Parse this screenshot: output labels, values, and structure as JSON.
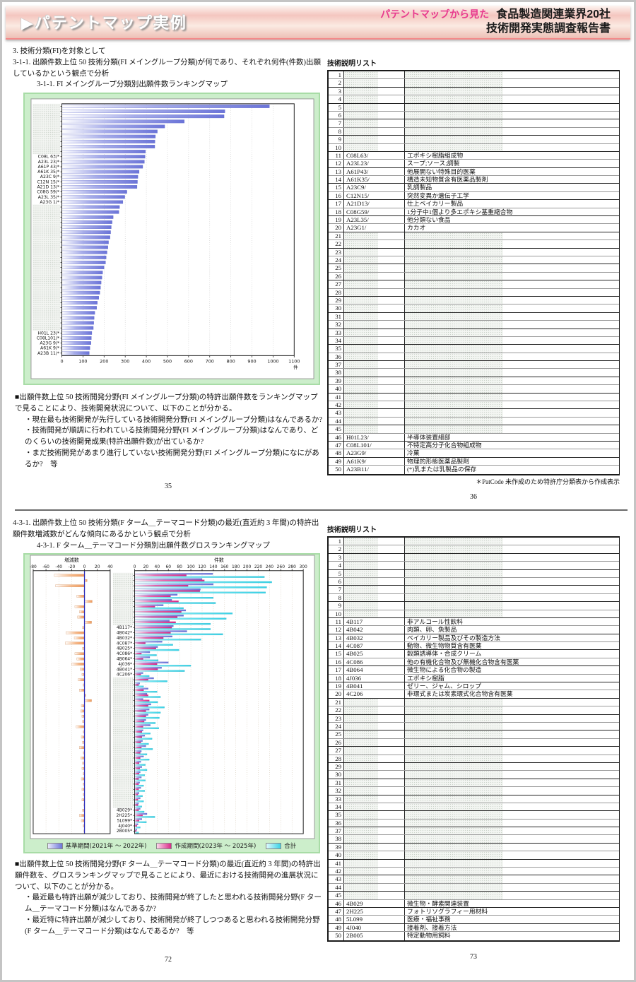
{
  "header": {
    "title": "▶パテントマップ実例",
    "subtitle_pink": "パテントマップから見た",
    "subtitle_black1": "食品製造関連業界20社",
    "subtitle_black2": "技術開発実態調査報告書"
  },
  "section1": {
    "intro_line1": "3. 技術分類(FI)を対象として",
    "intro_line2": "3-1-1. 出願件数上位 50 技術分類(FI メイングループ分類)が何であり、それぞれ何件(件数)出願しているかという観点で分析",
    "map_title": "3-1-1. FI メイングループ分類別出願件数ランキングマップ",
    "bullet_head": "■出願件数上位 50 技術開発分野(FI メイングループ分類)の特許出願件数をランキングマップで見ることにより、技術開発状況について、以下のことが分かる。",
    "bullet1": "・現在最も技術開発が先行している技術開発分野(FI メイングループ分類)はなんであるか?",
    "bullet2": "・技術開発が順調に行われている技術開発分野(FI メイングループ分類)はなんであり、どのくらいの技術開発成果(特許出願件数)が出ているか?",
    "bullet3": "・まだ技術開発があまり進行していない技術開発分野(FI メイングループ分類)になにがあるか?　等",
    "page_left": "35",
    "page_right": "36",
    "table_title": "技術説明リスト",
    "footnote": "＊PatCode 未作成のため特許庁分類表から作成表示",
    "table_total_rows": 50,
    "table_rows": [
      {
        "n": 11,
        "code": "C08L63/",
        "desc": "エポキシ樹脂組成物"
      },
      {
        "n": 12,
        "code": "A23L23/",
        "desc": "スープ;ソース;調製"
      },
      {
        "n": 13,
        "code": "A61P43/",
        "desc": "他展開ない特殊目的医薬"
      },
      {
        "n": 14,
        "code": "A61K35/",
        "desc": "構造未知物質含有医薬品製剤"
      },
      {
        "n": 15,
        "code": "A23C9/",
        "desc": "乳調製品"
      },
      {
        "n": 16,
        "code": "C12N15/",
        "desc": "突然変異か遺伝子工学"
      },
      {
        "n": 17,
        "code": "A21D13/",
        "desc": "仕上ベイカリー製品"
      },
      {
        "n": 18,
        "code": "C08G59/",
        "desc": "1分子中1個より多エポキシ基重縮合物"
      },
      {
        "n": 19,
        "code": "A23L35/",
        "desc": "他分類ない食品"
      },
      {
        "n": 20,
        "code": "A23G1/",
        "desc": "カカオ"
      },
      {
        "n": 46,
        "code": "H01L23/",
        "desc": "半導体装置細部"
      },
      {
        "n": 47,
        "code": "C08L101/",
        "desc": "不特定高分子化合物組成物"
      },
      {
        "n": 48,
        "code": "A23G9/",
        "desc": "冷菓"
      },
      {
        "n": 49,
        "code": "A61K9/",
        "desc": "物理的形態医薬品製剤"
      },
      {
        "n": 50,
        "code": "A23B11/",
        "desc": "(*)乳または乳製品の保存"
      }
    ]
  },
  "section2": {
    "intro_line1": "4-3-1. 出願件数上位 50 技術分類(F ターム＿テーマコード分類)の最近(直近約 3 年間)の特許出願件数増減数がどんな傾向にあるかという観点で分析",
    "map_title": "4-3-1. F ターム＿テーマコード分類別出願件数グロスランキングマップ",
    "bullet_head": "■出願件数上位 50 技術開発分野(F ターム＿テーマコード分類)の最近(直近約 3 年間)の特許出願件数を、グロスランキングマップで見ることにより、最近における技術開発の進展状況について、以下のことが分かる。",
    "bullet1": "・最近最も特許出願が減少しており、技術開発が終了したと思われる技術開発分野(F ターム＿テーマコード分類)はなんであるか?",
    "bullet2": "・最近特に特許出願が減少しており、技術開発が終了しつつあると思われる技術開発分野(F ターム＿テーマコード分類)はなんであるか?　等",
    "page_left": "72",
    "page_right": "73",
    "table_title": "技術説明リスト",
    "table_total_rows": 50,
    "table_rows": [
      {
        "n": 11,
        "code": "4B117",
        "desc": "非アルコール性飲料"
      },
      {
        "n": 12,
        "code": "4B042",
        "desc": "肉類、卵、魚製品"
      },
      {
        "n": 13,
        "code": "4B032",
        "desc": "ベイカリー製品及びその製造方法"
      },
      {
        "n": 14,
        "code": "4C087",
        "desc": "動物、微生物物質含有医薬"
      },
      {
        "n": 15,
        "code": "4B025",
        "desc": "穀類誘導体・合成クリーム"
      },
      {
        "n": 16,
        "code": "4C086",
        "desc": "他の有機化合物及び無機化合物含有医薬"
      },
      {
        "n": 17,
        "code": "4B064",
        "desc": "微生物による化合物の製造"
      },
      {
        "n": 18,
        "code": "4J036",
        "desc": "エポキシ樹脂"
      },
      {
        "n": 19,
        "code": "4B041",
        "desc": "ゼリー、ジャム、シロップ"
      },
      {
        "n": 20,
        "code": "4C206",
        "desc": "非環式または炭素環式化合物含有医薬"
      },
      {
        "n": 46,
        "code": "4B029",
        "desc": "微生物・酵素関連装置"
      },
      {
        "n": 47,
        "code": "2H225",
        "desc": "フォトリソグラフィー用材料"
      },
      {
        "n": 48,
        "code": "5L099",
        "desc": "医療・福祉事務"
      },
      {
        "n": 49,
        "code": "4J040",
        "desc": "接着剤、接着方法"
      },
      {
        "n": 50,
        "code": "2B005",
        "desc": "特定動物用飼料"
      }
    ]
  },
  "chart_data": [
    {
      "type": "bar",
      "orientation": "horizontal",
      "title": "3-1-1. FI メイングループ分類別出願件数ランキングマップ",
      "xlabel": "件",
      "xlim": [
        0,
        1100
      ],
      "xticks": [
        0,
        100,
        200,
        300,
        400,
        500,
        600,
        700,
        800,
        900,
        1000,
        1100
      ],
      "grid": true,
      "categories": [
        "",
        "",
        "",
        "",
        "",
        "",
        "",
        "",
        "",
        "",
        "C08L 63/*",
        "A23L 23/*",
        "A61P 43/*",
        "A61K 35/*",
        "A23C 9/*",
        "C12N 15/*",
        "A21D 13/*",
        "C08G 59/*",
        "A23L 35/*",
        "A23G 1/*",
        "",
        "",
        "",
        "",
        "",
        "",
        "",
        "",
        "",
        "",
        "",
        "",
        "",
        "",
        "",
        "",
        "",
        "",
        "",
        "",
        "",
        "",
        "",
        "",
        "",
        "H01L 23/*",
        "C08L101/*",
        "A23G 9/*",
        "A61K 9/*",
        "A23B 11/*"
      ],
      "values": [
        983,
        772,
        768,
        580,
        487,
        452,
        443,
        441,
        440,
        396,
        394,
        391,
        383,
        366,
        360,
        358,
        356,
        308,
        298,
        289,
        273,
        270,
        243,
        238,
        234,
        231,
        228,
        221,
        218,
        214,
        210,
        207,
        200,
        193,
        190,
        186,
        183,
        180,
        175,
        168,
        165,
        156,
        153,
        151,
        149,
        142,
        140,
        138,
        133,
        130
      ],
      "bar_color": "#6b74d8"
    },
    {
      "type": "bar",
      "orientation": "horizontal",
      "title": "4-3-1. F ターム＿テーマコード分類別出願件数グロスランキングマップ",
      "categories": [
        "",
        "",
        "",
        "",
        "",
        "",
        "",
        "",
        "",
        "",
        "4B117*",
        "4B042*",
        "4B032*",
        "4C087*",
        "4B025*",
        "4C086*",
        "4B064*",
        "4J036*",
        "4B041*",
        "4C206*",
        "",
        "",
        "",
        "",
        "",
        "",
        "",
        "",
        "",
        "",
        "",
        "",
        "",
        "",
        "",
        "",
        "",
        "",
        "",
        "",
        "",
        "",
        "",
        "",
        "",
        "4B029*",
        "2H225*",
        "5L099*",
        "4J040*",
        "2B005*"
      ],
      "legend": [
        "基準期間(2021年 ～ 2022年)",
        "作成期間(2023年 ～ 2025年)",
        "合計"
      ],
      "legend_position": "bottom",
      "panels": [
        {
          "title": "増減数",
          "xlim": [
            -80,
            40
          ],
          "xticks": [
            -80,
            -60,
            -40,
            -20,
            0,
            20,
            40
          ],
          "series": [
            {
              "name": "増減数",
              "values": [
                -47,
                4,
                -45,
                -1,
                -12,
                12,
                -15,
                -8,
                -11,
                11,
                -3,
                -29,
                -16,
                -30,
                -3,
                -15,
                -12,
                -20,
                -7,
                -4,
                -10,
                -2,
                -8,
                2,
                11,
                -5,
                -6,
                -4,
                -3,
                -13,
                -2,
                -5,
                -3,
                -8,
                -2,
                -6,
                -3,
                -4,
                -2,
                -5,
                -2,
                -4,
                -2,
                -4,
                -1,
                -3,
                -8,
                -5,
                -2,
                -1
              ],
              "color": "#ef9a5d"
            }
          ]
        },
        {
          "title": "件数",
          "xlim": [
            0,
            300
          ],
          "xticks": [
            0,
            20,
            40,
            60,
            80,
            100,
            120,
            140,
            160,
            180,
            200,
            220,
            240,
            260,
            280,
            300
          ],
          "series": [
            {
              "name": "基準期間(2021年 ～ 2022年)",
              "values": [
                139,
                120,
                140,
                117,
                76,
                66,
                51,
                91,
                87,
                62,
                69,
                93,
                67,
                49,
                41,
                27,
                27,
                60,
                48,
                15,
                34,
                9,
                24,
                22,
                15,
                29,
                26,
                24,
                20,
                28,
                15,
                18,
                14,
                20,
                12,
                16,
                11,
                13,
                10,
                12,
                9,
                11,
                8,
                10,
                7,
                10,
                22,
                13,
                6,
                4
              ],
              "color": "#6b74d8"
            },
            {
              "name": "作成期間(2023年 ～ 2025年)",
              "values": [
                92,
                124,
                95,
                116,
                64,
                78,
                36,
                83,
                76,
                73,
                66,
                64,
                51,
                19,
                38,
                12,
                15,
                40,
                41,
                11,
                24,
                7,
                16,
                24,
                26,
                24,
                20,
                20,
                17,
                15,
                13,
                13,
                11,
                12,
                10,
                10,
                8,
                9,
                8,
                7,
                7,
                7,
                6,
                6,
                6,
                7,
                14,
                8,
                4,
                3
              ],
              "color": "#d92a88"
            },
            {
              "name": "合計",
              "values": [
                231,
                244,
                235,
                233,
                140,
                144,
                87,
                174,
                163,
                135,
                135,
                157,
                118,
                68,
                79,
                39,
                42,
                100,
                89,
                26,
                58,
                16,
                40,
                46,
                41,
                53,
                46,
                44,
                37,
                43,
                28,
                31,
                25,
                32,
                22,
                26,
                19,
                22,
                18,
                19,
                16,
                18,
                14,
                16,
                13,
                17,
                36,
                21,
                10,
                7
              ],
              "color": "#3cd2e6"
            }
          ]
        }
      ]
    }
  ]
}
